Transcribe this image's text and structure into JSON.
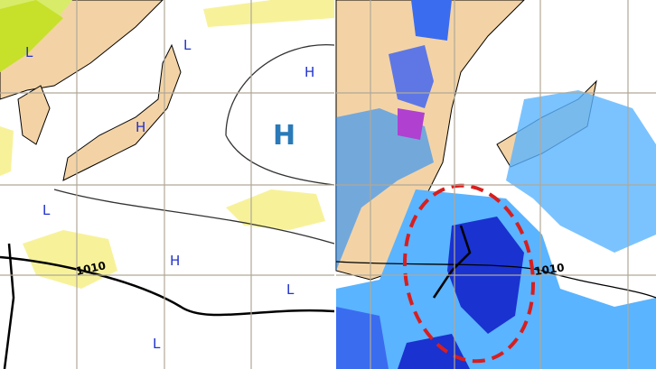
{
  "panels": [
    {
      "labels": [
        "L",
        "L",
        "H",
        "H",
        "H",
        "L",
        "1010",
        "H",
        "L",
        "L"
      ]
    },
    {
      "labels": [
        "1010"
      ]
    }
  ]
}
